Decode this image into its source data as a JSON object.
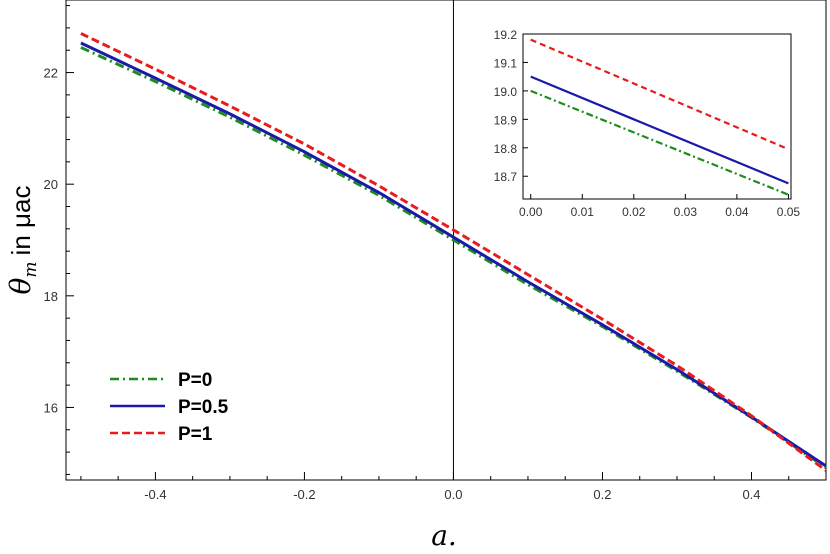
{
  "chart_data": [
    {
      "type": "line",
      "title": "",
      "xlabel": "a.",
      "ylabel": "in μac",
      "ylabel_symbol": "θ",
      "ylabel_subscript": "m",
      "xlim": [
        -0.52,
        0.5
      ],
      "ylim": [
        14.7,
        23.3
      ],
      "xticks": [
        -0.4,
        -0.2,
        0.0,
        0.2,
        0.4
      ],
      "xtick_labels": [
        "-0.4",
        "-0.2",
        "0.0",
        "0.2",
        "0.4"
      ],
      "yticks": [
        16,
        18,
        20,
        22
      ],
      "ytick_labels": [
        "16",
        "18",
        "20",
        "22"
      ],
      "vertical_line_at": 0,
      "legend_position": "bottom-left",
      "series": [
        {
          "name": "P=0",
          "color": "#1e8c1e",
          "style": "dash-dot",
          "x": [
            -0.5,
            -0.4,
            -0.3,
            -0.2,
            -0.1,
            0.0,
            0.1,
            0.2,
            0.3,
            0.4,
            0.5
          ],
          "y": [
            22.45,
            21.84,
            21.2,
            20.52,
            19.8,
            19.0,
            18.2,
            17.45,
            16.65,
            15.82,
            14.92
          ]
        },
        {
          "name": "P=0.5",
          "color": "#1a1aa8",
          "style": "solid",
          "x": [
            -0.5,
            -0.4,
            -0.3,
            -0.2,
            -0.1,
            0.0,
            0.1,
            0.2,
            0.3,
            0.4,
            0.5
          ],
          "y": [
            22.53,
            21.9,
            21.26,
            20.58,
            19.85,
            19.05,
            18.25,
            17.48,
            16.68,
            15.83,
            14.95
          ]
        },
        {
          "name": "P=1",
          "color": "#e81c1c",
          "style": "dashed",
          "x": [
            -0.5,
            -0.4,
            -0.3,
            -0.2,
            -0.1,
            0.0,
            0.1,
            0.2,
            0.3,
            0.4,
            0.5
          ],
          "y": [
            22.7,
            22.06,
            21.4,
            20.72,
            19.97,
            19.18,
            18.38,
            17.58,
            16.75,
            15.85,
            14.87
          ]
        }
      ]
    },
    {
      "type": "line",
      "title": "",
      "xlim": [
        -0.0015,
        0.0505
      ],
      "ylim": [
        18.62,
        19.2
      ],
      "xticks": [
        0.0,
        0.01,
        0.02,
        0.03,
        0.04,
        0.05
      ],
      "xtick_labels": [
        "0.00",
        "0.01",
        "0.02",
        "0.03",
        "0.04",
        "0.05"
      ],
      "yticks": [
        18.7,
        18.8,
        18.9,
        19.0,
        19.1,
        19.2
      ],
      "ytick_labels": [
        "18.7",
        "18.8",
        "18.9",
        "19.0",
        "19.1",
        "19.2"
      ],
      "series": [
        {
          "color": "#1e8c1e",
          "style": "dash-dot",
          "x": [
            0.0,
            0.05
          ],
          "y": [
            19.0,
            18.635
          ]
        },
        {
          "color": "#1a1aa8",
          "style": "solid",
          "x": [
            0.0,
            0.05
          ],
          "y": [
            19.05,
            18.675
          ]
        },
        {
          "color": "#e81c1c",
          "style": "dashed",
          "x": [
            0.0,
            0.05
          ],
          "y": [
            19.18,
            18.795
          ]
        }
      ]
    }
  ]
}
